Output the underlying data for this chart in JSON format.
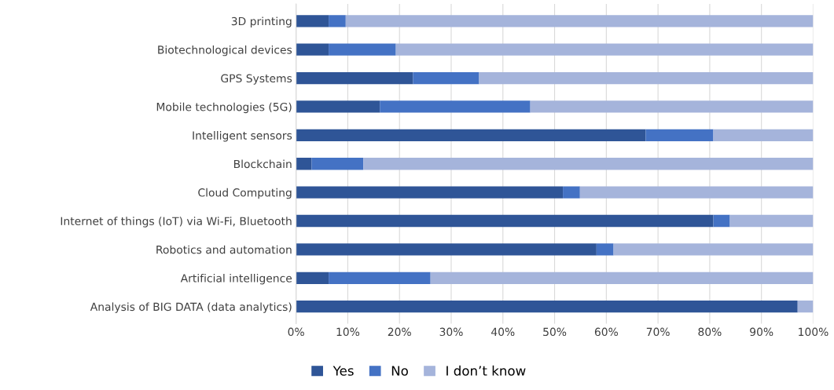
{
  "chart_data": {
    "type": "bar",
    "orientation": "horizontal",
    "stacked": true,
    "categories": [
      "3D printing",
      "Biotechnological devices",
      "GPS Systems",
      "Mobile technologies (5G)",
      "Intelligent sensors",
      "Blockchain",
      "Cloud Computing",
      "Internet of things (IoT) via Wi-Fi, Bluetooth",
      "Robotics and automation",
      "Artificial intelligence",
      "Analysis of BIG DATA (data analytics)"
    ],
    "series": [
      {
        "name": "Yes",
        "color": "#2f5597",
        "values": [
          6.3,
          6.3,
          22.6,
          16.2,
          67.6,
          3,
          51.6,
          80.7,
          58.1,
          6.3,
          97
        ]
      },
      {
        "name": "No",
        "color": "#4472c4",
        "values": [
          3.3,
          13,
          12.8,
          29.1,
          13.1,
          10,
          3.3,
          3.2,
          3.3,
          19.7,
          0
        ]
      },
      {
        "name": "I don’t know",
        "color": "#a5b4db",
        "values": [
          90.4,
          80.7,
          64.6,
          54.7,
          19.3,
          87,
          45.1,
          16.1,
          38.6,
          74,
          3
        ]
      }
    ],
    "xlim": [
      0,
      100
    ],
    "xticks": [
      {
        "value": 0,
        "label": "0%"
      },
      {
        "value": 10,
        "label": "10%"
      },
      {
        "value": 20,
        "label": "20%"
      },
      {
        "value": 30,
        "label": "30%"
      },
      {
        "value": 40,
        "label": "40%"
      },
      {
        "value": 50,
        "label": "50%"
      },
      {
        "value": 60,
        "label": "60%"
      },
      {
        "value": 70,
        "label": "70%"
      },
      {
        "value": 80,
        "label": "80%"
      },
      {
        "value": 90,
        "label": "90%"
      },
      {
        "value": 100,
        "label": "100%"
      }
    ],
    "grid": "x",
    "legend": "bottom"
  }
}
